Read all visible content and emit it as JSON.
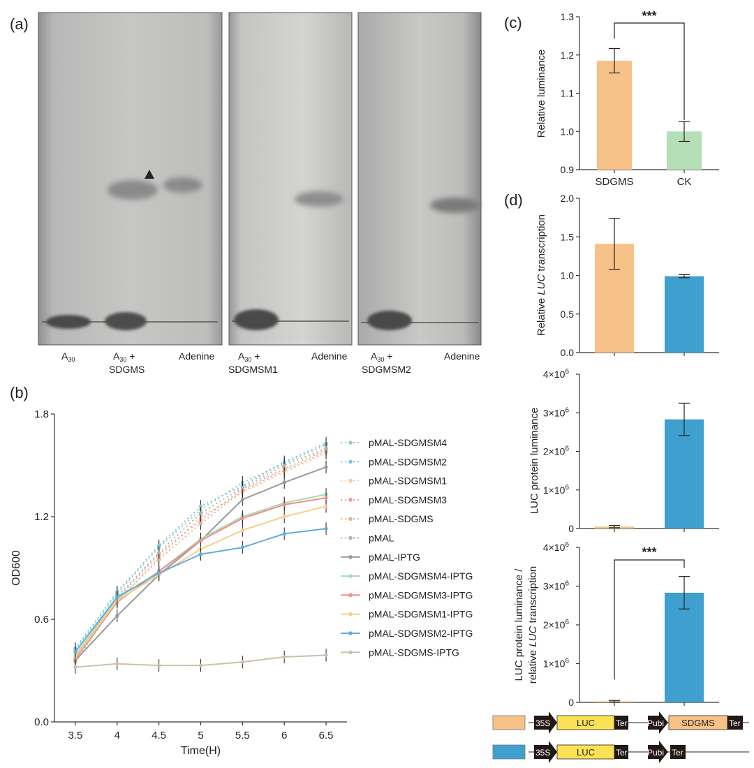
{
  "panel_labels": {
    "a": "(a)",
    "b": "(b)",
    "c": "(c)",
    "d": "(d)"
  },
  "tlc": {
    "plates": [
      {
        "lanes": [
          {
            "l1": "A30",
            "l2": ""
          },
          {
            "l1": "A30 +",
            "l2": "SDGMS"
          },
          {
            "l1": "Adenine",
            "l2": ""
          }
        ]
      },
      {
        "lanes": [
          {
            "l1": "A30 +",
            "l2": "SDGMSM1"
          },
          {
            "l1": "Adenine",
            "l2": ""
          }
        ]
      },
      {
        "lanes": [
          {
            "l1": "A30 +",
            "l2": "SDGMSM2"
          },
          {
            "l1": "Adenine",
            "l2": ""
          }
        ]
      }
    ],
    "subscript": "30",
    "lane_base": "A"
  },
  "chart_data": [
    {
      "id": "b",
      "type": "line",
      "xlabel": "Time(H)",
      "ylabel": "OD600",
      "x": [
        3.5,
        4,
        4.5,
        5,
        5.5,
        6,
        6.5
      ],
      "x_ticks": [
        "3.5",
        "4",
        "4.5",
        "5",
        "5.5",
        "6",
        "6.5"
      ],
      "ylim": [
        0,
        1.8
      ],
      "y_ticks": [
        "0.0",
        "0.6",
        "1.2",
        "1.8"
      ],
      "series": [
        {
          "name": "pMAL-SDGMSM4",
          "color": "#8fd4a4",
          "style": "dotted",
          "values": [
            0.42,
            0.75,
            1.02,
            1.24,
            1.4,
            1.51,
            1.62
          ]
        },
        {
          "name": "pMAL-SDGMSM2",
          "color": "#7cc0e8",
          "style": "dotted",
          "values": [
            0.43,
            0.76,
            1.03,
            1.26,
            1.38,
            1.52,
            1.63
          ]
        },
        {
          "name": "pMAL-SDGMSM1",
          "color": "#f7c9a0",
          "style": "dotted",
          "values": [
            0.36,
            0.7,
            0.96,
            1.2,
            1.34,
            1.46,
            1.57
          ]
        },
        {
          "name": "pMAL-SDGMSM3",
          "color": "#f09a98",
          "style": "dotted",
          "values": [
            0.37,
            0.72,
            0.98,
            1.18,
            1.36,
            1.48,
            1.59
          ]
        },
        {
          "name": "pMAL-SDGMS",
          "color": "#d8b494",
          "style": "dotted",
          "values": [
            0.35,
            0.71,
            0.95,
            1.16,
            1.35,
            1.47,
            1.58
          ]
        },
        {
          "name": "pMAL",
          "color": "#b0b0b0",
          "style": "dotted",
          "values": [
            0.38,
            0.73,
            0.99,
            1.22,
            1.37,
            1.5,
            1.6
          ]
        },
        {
          "name": "pMAL-IPTG",
          "color": "#9a9a9a",
          "style": "solid",
          "values": [
            0.36,
            0.62,
            0.86,
            1.06,
            1.3,
            1.4,
            1.49
          ]
        },
        {
          "name": "pMAL-SDGMSM4-IPTG",
          "color": "#a6dcb2",
          "style": "solid",
          "values": [
            0.39,
            0.72,
            0.88,
            1.07,
            1.2,
            1.28,
            1.33
          ]
        },
        {
          "name": "pMAL-SDGMSM3-IPTG",
          "color": "#f08c8c",
          "style": "solid",
          "values": [
            0.37,
            0.7,
            0.88,
            1.06,
            1.19,
            1.27,
            1.31
          ]
        },
        {
          "name": "pMAL-SDGMSM1-IPTG",
          "color": "#f7cf8c",
          "style": "solid",
          "values": [
            0.38,
            0.71,
            0.86,
            1.01,
            1.12,
            1.2,
            1.26
          ]
        },
        {
          "name": "pMAL-SDGMSM2-IPTG",
          "color": "#5faedd",
          "style": "solid",
          "values": [
            0.41,
            0.73,
            0.87,
            0.98,
            1.02,
            1.1,
            1.13
          ]
        },
        {
          "name": "pMAL-SDGMS-IPTG",
          "color": "#cdbfae",
          "style": "solid",
          "values": [
            0.32,
            0.34,
            0.33,
            0.33,
            0.35,
            0.38,
            0.39
          ]
        }
      ]
    },
    {
      "id": "c",
      "type": "bar",
      "ylabel": "Relative luminance",
      "categories": [
        "SDGMS",
        "CK"
      ],
      "values": [
        1.185,
        1.0
      ],
      "errors": [
        0.032,
        0.026
      ],
      "colors": [
        "#f7c287",
        "#b5dfb6"
      ],
      "ylim": [
        0.9,
        1.3
      ],
      "y_ticks": [
        "0.9",
        "1.0",
        "1.1",
        "1.2",
        "1.3"
      ],
      "significance": "***"
    },
    {
      "id": "d1",
      "type": "bar",
      "ylabel_parts": [
        "Relative ",
        "LUC",
        " transcription"
      ],
      "values": [
        1.41,
        0.99
      ],
      "errors": [
        0.33,
        0.02
      ],
      "colors": [
        "#f7c287",
        "#3fa0d0"
      ],
      "ylim": [
        0,
        2.0
      ],
      "y_ticks": [
        "0.0",
        "0.5",
        "1.0",
        "1.5",
        "2.0"
      ]
    },
    {
      "id": "d2",
      "type": "bar",
      "ylabel": "LUC protein luminance",
      "values": [
        50000,
        2830000
      ],
      "errors": [
        30000,
        420000
      ],
      "colors": [
        "#f7c287",
        "#3fa0d0"
      ],
      "ylim": [
        0,
        4000000
      ],
      "y_ticks": [
        "0",
        "1×10",
        "2×10",
        "3×10",
        "4×10"
      ],
      "tick_exp": "6"
    },
    {
      "id": "d3",
      "type": "bar",
      "ylabel_line1": "LUC protein luminance /",
      "ylabel_line2_parts": [
        "relative ",
        "LUC",
        " transcription"
      ],
      "values": [
        30000,
        2830000
      ],
      "errors": [
        20000,
        420000
      ],
      "colors": [
        "#f7c287",
        "#3fa0d0"
      ],
      "ylim": [
        0,
        4000000
      ],
      "y_ticks": [
        "0",
        "1×10",
        "2×10",
        "3×10",
        "4×10"
      ],
      "tick_exp": "6",
      "significance": "***"
    }
  ],
  "constructs": [
    {
      "color": "#f7c287",
      "promoter1": "35S",
      "gene1": "LUC",
      "term1": "Ter",
      "promoter2": "Pubi",
      "gene2": "SDGMS",
      "term2": "Ter"
    },
    {
      "color": "#3fa0d0",
      "promoter1": "35S",
      "gene1": "LUC",
      "term1": "Ter",
      "promoter2": "Pubi",
      "gene2": "",
      "term2": "Ter"
    }
  ]
}
